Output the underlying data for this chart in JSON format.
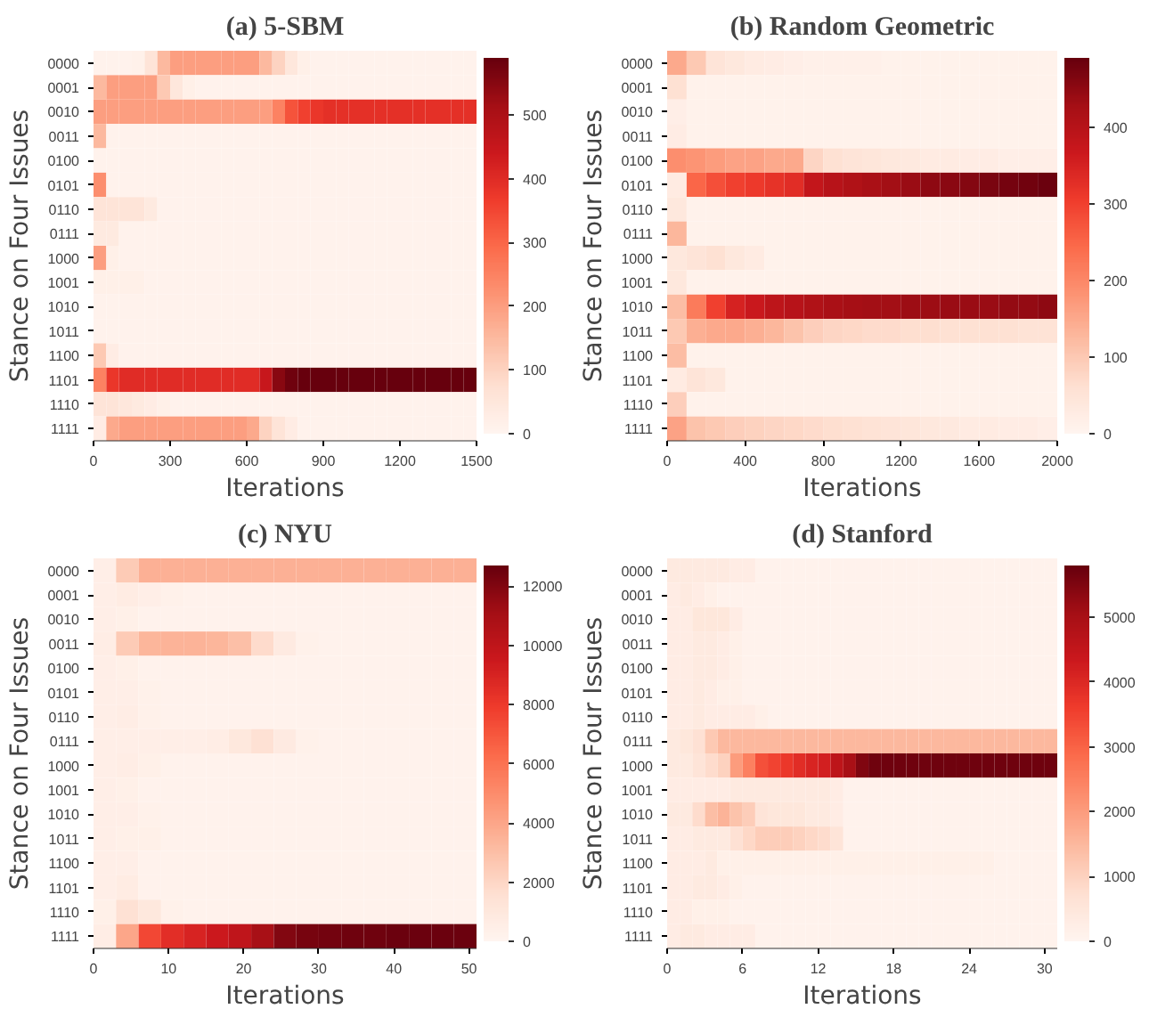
{
  "chart_data": [
    {
      "type": "heatmap",
      "title": "(a) 5-SBM",
      "xlabel": "Iterations",
      "ylabel": "Stance on Four Issues",
      "x": [
        25,
        75,
        125,
        175,
        225,
        275,
        325,
        375,
        425,
        475,
        525,
        575,
        625,
        675,
        725,
        775,
        825,
        875,
        925,
        975,
        1025,
        1075,
        1125,
        1175,
        1225,
        1275,
        1325,
        1375,
        1425,
        1475
      ],
      "xlim": [
        0,
        1500
      ],
      "xticks": [
        0,
        300,
        600,
        900,
        1200,
        1500
      ],
      "y_categories": [
        "0000",
        "0001",
        "0010",
        "0011",
        "0100",
        "0101",
        "0110",
        "0111",
        "1000",
        "1001",
        "1010",
        "1011",
        "1100",
        "1101",
        "1110",
        "1111"
      ],
      "clim": [
        0,
        590
      ],
      "cticks": [
        0,
        100,
        200,
        300,
        400,
        500
      ],
      "cells": [
        [
          10,
          10,
          10,
          15,
          60,
          150,
          200,
          200,
          200,
          200,
          200,
          200,
          200,
          150,
          100,
          50,
          20,
          10,
          10,
          10,
          10,
          10,
          10,
          10,
          10,
          10,
          10,
          10,
          10,
          10
        ],
        [
          150,
          200,
          200,
          200,
          200,
          120,
          50,
          20,
          10,
          10,
          10,
          10,
          10,
          10,
          10,
          10,
          10,
          10,
          10,
          10,
          10,
          10,
          10,
          10,
          10,
          10,
          10,
          10,
          10,
          10
        ],
        [
          200,
          200,
          200,
          200,
          200,
          200,
          200,
          200,
          200,
          200,
          200,
          200,
          200,
          200,
          250,
          330,
          360,
          380,
          390,
          390,
          390,
          390,
          390,
          390,
          390,
          390,
          390,
          390,
          390,
          390
        ],
        [
          150,
          10,
          10,
          10,
          10,
          10,
          10,
          10,
          10,
          10,
          10,
          10,
          10,
          10,
          10,
          10,
          10,
          10,
          10,
          10,
          10,
          10,
          10,
          10,
          10,
          10,
          10,
          10,
          10,
          10
        ],
        [
          10,
          10,
          10,
          10,
          10,
          10,
          10,
          10,
          10,
          10,
          10,
          10,
          10,
          10,
          10,
          10,
          10,
          10,
          10,
          10,
          10,
          10,
          10,
          10,
          10,
          10,
          10,
          10,
          10,
          10
        ],
        [
          230,
          10,
          10,
          10,
          10,
          10,
          10,
          10,
          10,
          10,
          10,
          10,
          10,
          10,
          10,
          10,
          10,
          10,
          10,
          10,
          10,
          10,
          10,
          10,
          10,
          10,
          10,
          10,
          10,
          10
        ],
        [
          60,
          60,
          60,
          60,
          40,
          10,
          10,
          10,
          10,
          10,
          10,
          10,
          10,
          10,
          10,
          10,
          10,
          10,
          10,
          10,
          10,
          10,
          10,
          10,
          10,
          10,
          10,
          10,
          10,
          10
        ],
        [
          40,
          40,
          10,
          10,
          10,
          10,
          10,
          10,
          10,
          10,
          10,
          10,
          10,
          10,
          10,
          10,
          10,
          10,
          10,
          10,
          10,
          10,
          10,
          10,
          10,
          10,
          10,
          10,
          10,
          10
        ],
        [
          200,
          20,
          10,
          10,
          10,
          10,
          10,
          10,
          10,
          10,
          10,
          10,
          10,
          10,
          10,
          10,
          10,
          10,
          10,
          10,
          10,
          10,
          10,
          10,
          10,
          10,
          10,
          10,
          10,
          10
        ],
        [
          20,
          20,
          20,
          20,
          10,
          10,
          10,
          10,
          10,
          10,
          10,
          10,
          10,
          10,
          10,
          10,
          10,
          10,
          10,
          10,
          10,
          10,
          10,
          10,
          10,
          10,
          10,
          10,
          10,
          10
        ],
        [
          10,
          10,
          10,
          10,
          10,
          10,
          10,
          10,
          10,
          10,
          10,
          10,
          10,
          10,
          10,
          10,
          10,
          10,
          10,
          10,
          10,
          10,
          10,
          10,
          10,
          10,
          10,
          10,
          10,
          10
        ],
        [
          10,
          10,
          10,
          10,
          10,
          10,
          10,
          10,
          10,
          10,
          10,
          10,
          10,
          10,
          10,
          10,
          10,
          10,
          10,
          10,
          10,
          10,
          10,
          10,
          10,
          10,
          10,
          10,
          10,
          10
        ],
        [
          120,
          30,
          10,
          10,
          10,
          10,
          10,
          10,
          10,
          10,
          10,
          10,
          10,
          10,
          10,
          10,
          10,
          10,
          10,
          10,
          10,
          10,
          10,
          10,
          10,
          10,
          10,
          10,
          10,
          10
        ],
        [
          250,
          380,
          400,
          400,
          400,
          400,
          400,
          400,
          400,
          400,
          400,
          400,
          400,
          450,
          550,
          580,
          590,
          590,
          590,
          590,
          590,
          590,
          590,
          590,
          590,
          590,
          590,
          590,
          590,
          590
        ],
        [
          60,
          60,
          50,
          40,
          30,
          20,
          10,
          10,
          10,
          10,
          10,
          10,
          10,
          10,
          10,
          10,
          10,
          10,
          10,
          10,
          10,
          10,
          10,
          10,
          10,
          10,
          10,
          10,
          10,
          10
        ],
        [
          30,
          180,
          200,
          200,
          200,
          200,
          200,
          200,
          200,
          200,
          200,
          200,
          180,
          100,
          60,
          30,
          10,
          10,
          10,
          10,
          10,
          10,
          10,
          10,
          10,
          10,
          10,
          10,
          10,
          10
        ]
      ]
    },
    {
      "type": "heatmap",
      "title": "(b) Random Geometric",
      "xlabel": "Iterations",
      "ylabel": "Stance on Four Issues",
      "x": [
        50,
        150,
        250,
        350,
        450,
        550,
        650,
        750,
        850,
        950,
        1050,
        1150,
        1250,
        1350,
        1450,
        1550,
        1650,
        1750,
        1850,
        1950
      ],
      "xlim": [
        0,
        2000
      ],
      "xticks": [
        0,
        400,
        800,
        1200,
        1600,
        2000
      ],
      "y_categories": [
        "0000",
        "0001",
        "0010",
        "0011",
        "0100",
        "0101",
        "0110",
        "0111",
        "1000",
        "1001",
        "1010",
        "1011",
        "1100",
        "1101",
        "1110",
        "1111"
      ],
      "clim": [
        0,
        490
      ],
      "cticks": [
        0,
        100,
        200,
        300,
        400
      ],
      "cells": [
        [
          150,
          100,
          50,
          40,
          30,
          25,
          20,
          15,
          15,
          15,
          15,
          10,
          10,
          10,
          10,
          10,
          10,
          10,
          10,
          10
        ],
        [
          60,
          10,
          10,
          10,
          10,
          10,
          10,
          10,
          10,
          10,
          10,
          10,
          10,
          10,
          10,
          10,
          10,
          10,
          10,
          10
        ],
        [
          20,
          10,
          10,
          10,
          10,
          10,
          10,
          10,
          10,
          10,
          10,
          10,
          10,
          10,
          10,
          10,
          10,
          10,
          10,
          10
        ],
        [
          25,
          10,
          10,
          10,
          10,
          10,
          10,
          10,
          10,
          10,
          10,
          10,
          10,
          10,
          10,
          10,
          10,
          10,
          10,
          10
        ],
        [
          190,
          180,
          170,
          160,
          160,
          150,
          150,
          80,
          60,
          50,
          45,
          40,
          35,
          30,
          30,
          25,
          25,
          20,
          20,
          20
        ],
        [
          30,
          250,
          280,
          300,
          310,
          320,
          330,
          380,
          400,
          410,
          420,
          430,
          440,
          450,
          455,
          460,
          470,
          475,
          480,
          485
        ],
        [
          40,
          10,
          10,
          10,
          10,
          10,
          10,
          10,
          10,
          10,
          10,
          10,
          10,
          10,
          10,
          10,
          10,
          10,
          10,
          10
        ],
        [
          130,
          10,
          10,
          10,
          10,
          10,
          10,
          10,
          10,
          10,
          10,
          10,
          10,
          10,
          10,
          10,
          10,
          10,
          10,
          10
        ],
        [
          40,
          50,
          60,
          40,
          30,
          10,
          10,
          10,
          10,
          10,
          10,
          10,
          10,
          10,
          10,
          10,
          10,
          10,
          10,
          10
        ],
        [
          40,
          10,
          10,
          10,
          10,
          10,
          10,
          10,
          10,
          10,
          10,
          10,
          10,
          10,
          10,
          10,
          10,
          10,
          10,
          10
        ],
        [
          120,
          220,
          300,
          350,
          370,
          390,
          400,
          410,
          420,
          425,
          430,
          430,
          435,
          435,
          440,
          440,
          440,
          445,
          445,
          450
        ],
        [
          100,
          140,
          150,
          150,
          140,
          130,
          110,
          90,
          80,
          75,
          70,
          70,
          65,
          65,
          60,
          60,
          60,
          60,
          55,
          55
        ],
        [
          120,
          10,
          10,
          10,
          10,
          10,
          10,
          10,
          10,
          10,
          10,
          10,
          10,
          10,
          10,
          10,
          10,
          10,
          10,
          10
        ],
        [
          30,
          50,
          40,
          10,
          10,
          10,
          10,
          10,
          10,
          10,
          10,
          10,
          10,
          10,
          10,
          10,
          10,
          10,
          10,
          10
        ],
        [
          90,
          10,
          10,
          10,
          10,
          10,
          10,
          10,
          10,
          10,
          10,
          10,
          10,
          10,
          10,
          10,
          10,
          10,
          10,
          10
        ],
        [
          160,
          110,
          100,
          90,
          85,
          80,
          75,
          70,
          65,
          60,
          55,
          50,
          45,
          40,
          35,
          30,
          30,
          25,
          25,
          20
        ]
      ]
    },
    {
      "type": "heatmap",
      "title": "(c) NYU",
      "xlabel": "Iterations",
      "ylabel": "Stance on Four Issues",
      "x": [
        1.5,
        4.5,
        7.5,
        10.5,
        13.5,
        16.5,
        19.5,
        22.5,
        25.5,
        28.5,
        31.5,
        34.5,
        37.5,
        40.5,
        43.5,
        46.5,
        49.5
      ],
      "xlim": [
        0,
        51
      ],
      "xticks": [
        0,
        10,
        20,
        30,
        40,
        50
      ],
      "y_categories": [
        "0000",
        "0001",
        "0010",
        "0011",
        "0100",
        "0101",
        "0110",
        "0111",
        "1000",
        "1001",
        "1010",
        "1011",
        "1100",
        "1101",
        "1110",
        "1111"
      ],
      "clim": [
        0,
        12700
      ],
      "cticks": [
        0,
        2000,
        4000,
        6000,
        8000,
        10000,
        12000
      ],
      "cells": [
        [
          500,
          2500,
          3600,
          3600,
          3600,
          3600,
          3600,
          3600,
          3600,
          3600,
          3600,
          3600,
          3600,
          3600,
          3600,
          3600,
          3600
        ],
        [
          500,
          700,
          500,
          300,
          200,
          200,
          200,
          200,
          200,
          200,
          200,
          200,
          200,
          200,
          200,
          200,
          200
        ],
        [
          500,
          400,
          200,
          200,
          200,
          200,
          200,
          200,
          200,
          200,
          200,
          200,
          200,
          200,
          200,
          200,
          200
        ],
        [
          600,
          2500,
          3400,
          3500,
          3500,
          3400,
          3000,
          1800,
          800,
          300,
          200,
          200,
          200,
          200,
          200,
          200,
          200
        ],
        [
          500,
          400,
          200,
          200,
          200,
          200,
          200,
          200,
          200,
          200,
          200,
          200,
          200,
          200,
          200,
          200,
          200
        ],
        [
          500,
          500,
          300,
          200,
          200,
          200,
          200,
          200,
          200,
          200,
          200,
          200,
          200,
          200,
          200,
          200,
          200
        ],
        [
          500,
          600,
          300,
          200,
          200,
          200,
          200,
          200,
          200,
          200,
          200,
          200,
          200,
          200,
          200,
          200,
          200
        ],
        [
          500,
          500,
          500,
          500,
          500,
          600,
          1000,
          1500,
          800,
          300,
          200,
          200,
          200,
          200,
          200,
          200,
          200
        ],
        [
          500,
          600,
          400,
          200,
          200,
          200,
          200,
          200,
          200,
          200,
          200,
          200,
          200,
          200,
          200,
          200,
          200
        ],
        [
          500,
          400,
          200,
          200,
          200,
          200,
          200,
          200,
          200,
          200,
          200,
          200,
          200,
          200,
          200,
          200,
          200
        ],
        [
          500,
          500,
          300,
          200,
          200,
          200,
          200,
          200,
          200,
          200,
          200,
          200,
          200,
          200,
          200,
          200,
          200
        ],
        [
          500,
          400,
          400,
          200,
          200,
          200,
          200,
          200,
          200,
          200,
          200,
          200,
          200,
          200,
          200,
          200,
          200
        ],
        [
          500,
          500,
          200,
          200,
          200,
          200,
          200,
          200,
          200,
          200,
          200,
          200,
          200,
          200,
          200,
          200,
          200
        ],
        [
          500,
          700,
          200,
          200,
          200,
          200,
          200,
          200,
          200,
          200,
          200,
          200,
          200,
          200,
          200,
          200,
          200
        ],
        [
          400,
          1500,
          1000,
          300,
          200,
          200,
          200,
          200,
          200,
          200,
          200,
          200,
          200,
          200,
          200,
          200,
          200
        ],
        [
          600,
          4000,
          7500,
          8500,
          9000,
          9500,
          10000,
          11000,
          12000,
          12300,
          12400,
          12500,
          12500,
          12600,
          12600,
          12600,
          12600
        ]
      ]
    },
    {
      "type": "heatmap",
      "title": "(d) Stanford",
      "xlabel": "Iterations",
      "ylabel": "Stance on Four Issues",
      "x": [
        0.5,
        1.5,
        2.5,
        3.5,
        4.5,
        5.5,
        6.5,
        7.5,
        8.5,
        9.5,
        10.5,
        11.5,
        12.5,
        13.5,
        14.5,
        15.5,
        16.5,
        17.5,
        18.5,
        19.5,
        20.5,
        21.5,
        22.5,
        23.5,
        24.5,
        25.5,
        26.5,
        27.5,
        28.5,
        29.5,
        30.5
      ],
      "xlim": [
        0,
        31
      ],
      "xticks": [
        0,
        6,
        12,
        18,
        24,
        30
      ],
      "y_categories": [
        "0000",
        "0001",
        "0010",
        "0011",
        "0100",
        "0101",
        "0110",
        "0111",
        "1000",
        "1001",
        "1010",
        "1011",
        "1100",
        "1101",
        "1110",
        "1111"
      ],
      "clim": [
        0,
        5800
      ],
      "cticks": [
        0,
        1000,
        2000,
        3000,
        4000,
        5000
      ],
      "cells": [
        [
          400,
          400,
          400,
          400,
          400,
          300,
          300,
          100,
          100,
          100,
          100,
          100,
          100,
          100,
          100,
          100,
          100,
          100,
          100,
          100,
          100,
          100,
          100,
          100,
          100,
          100,
          100,
          100,
          100,
          100,
          100
        ],
        [
          300,
          400,
          300,
          200,
          100,
          100,
          100,
          100,
          100,
          100,
          100,
          100,
          100,
          100,
          100,
          100,
          100,
          100,
          100,
          100,
          100,
          100,
          100,
          100,
          100,
          100,
          100,
          100,
          100,
          100,
          100
        ],
        [
          300,
          300,
          500,
          500,
          500,
          300,
          100,
          100,
          100,
          100,
          100,
          100,
          100,
          100,
          100,
          100,
          100,
          100,
          100,
          100,
          100,
          100,
          100,
          100,
          100,
          100,
          100,
          100,
          100,
          100,
          100
        ],
        [
          300,
          300,
          400,
          400,
          300,
          200,
          100,
          100,
          100,
          100,
          100,
          100,
          100,
          100,
          100,
          100,
          100,
          100,
          100,
          100,
          100,
          100,
          100,
          100,
          100,
          100,
          100,
          100,
          100,
          100,
          100
        ],
        [
          300,
          300,
          400,
          400,
          300,
          200,
          100,
          100,
          100,
          100,
          100,
          100,
          100,
          100,
          100,
          100,
          100,
          100,
          100,
          100,
          100,
          100,
          100,
          100,
          100,
          100,
          100,
          100,
          100,
          100,
          100
        ],
        [
          300,
          300,
          400,
          300,
          200,
          200,
          100,
          100,
          100,
          100,
          100,
          100,
          100,
          100,
          100,
          100,
          100,
          100,
          100,
          100,
          100,
          100,
          100,
          100,
          100,
          100,
          100,
          100,
          100,
          100,
          100
        ],
        [
          300,
          300,
          400,
          300,
          300,
          300,
          300,
          200,
          100,
          100,
          100,
          100,
          100,
          100,
          100,
          100,
          100,
          100,
          100,
          100,
          100,
          100,
          100,
          100,
          100,
          100,
          100,
          100,
          100,
          100,
          100
        ],
        [
          400,
          500,
          700,
          1200,
          1500,
          1500,
          1500,
          1500,
          1500,
          1500,
          1500,
          1500,
          1500,
          1500,
          1500,
          1500,
          1500,
          1500,
          1500,
          1500,
          1500,
          1500,
          1500,
          1500,
          1500,
          1500,
          1500,
          1500,
          1500,
          1500,
          1500
        ],
        [
          400,
          400,
          600,
          800,
          1000,
          2000,
          2500,
          3300,
          3500,
          3700,
          3900,
          4100,
          4200,
          4600,
          5000,
          5500,
          5700,
          5700,
          5700,
          5700,
          5700,
          5700,
          5700,
          5700,
          5700,
          5700,
          5700,
          5700,
          5700,
          5700,
          5700
        ],
        [
          300,
          300,
          300,
          300,
          300,
          400,
          400,
          400,
          400,
          400,
          400,
          400,
          400,
          300,
          100,
          100,
          100,
          100,
          100,
          100,
          100,
          100,
          100,
          100,
          100,
          100,
          100,
          100,
          100,
          100,
          100
        ],
        [
          400,
          400,
          800,
          1400,
          1600,
          1300,
          1100,
          600,
          500,
          500,
          500,
          400,
          400,
          300,
          100,
          100,
          100,
          100,
          100,
          100,
          100,
          100,
          100,
          100,
          100,
          100,
          100,
          100,
          100,
          100,
          100
        ],
        [
          300,
          300,
          400,
          400,
          400,
          700,
          900,
          1100,
          1100,
          1100,
          1000,
          900,
          800,
          600,
          100,
          100,
          100,
          100,
          100,
          100,
          100,
          100,
          100,
          100,
          100,
          100,
          100,
          100,
          100,
          100,
          100
        ],
        [
          300,
          300,
          300,
          400,
          200,
          200,
          200,
          200,
          200,
          200,
          200,
          200,
          200,
          200,
          200,
          200,
          200,
          200,
          200,
          200,
          200,
          200,
          200,
          200,
          200,
          200,
          100,
          100,
          100,
          100,
          100
        ],
        [
          300,
          300,
          400,
          400,
          300,
          200,
          100,
          100,
          100,
          100,
          100,
          100,
          100,
          100,
          100,
          100,
          100,
          100,
          100,
          100,
          100,
          100,
          100,
          100,
          100,
          100,
          100,
          100,
          100,
          100,
          100
        ],
        [
          300,
          300,
          200,
          200,
          200,
          100,
          100,
          100,
          100,
          100,
          100,
          100,
          100,
          100,
          100,
          100,
          100,
          100,
          100,
          100,
          100,
          100,
          100,
          100,
          100,
          100,
          100,
          100,
          100,
          100,
          100
        ],
        [
          300,
          400,
          400,
          300,
          300,
          300,
          300,
          100,
          100,
          100,
          100,
          100,
          100,
          100,
          100,
          100,
          100,
          100,
          100,
          100,
          100,
          100,
          100,
          100,
          100,
          100,
          100,
          100,
          100,
          100,
          100
        ]
      ]
    }
  ]
}
